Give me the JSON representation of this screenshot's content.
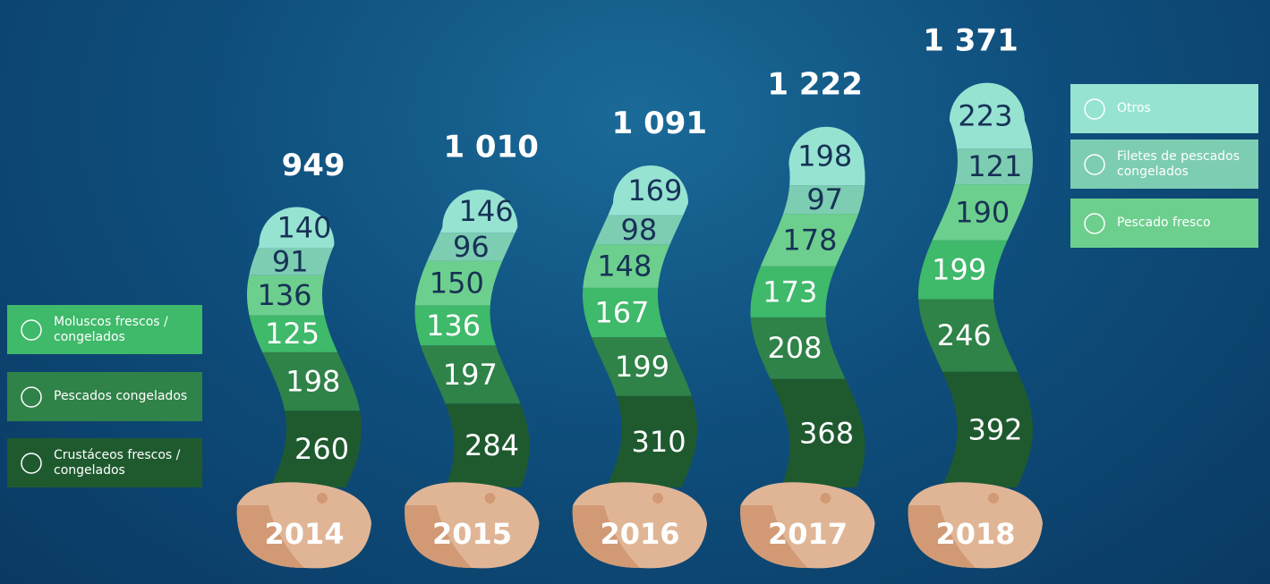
{
  "chart_data": {
    "type": "stacked-wave",
    "categories": [
      "2014",
      "2015",
      "2016",
      "2017",
      "2018"
    ],
    "series": [
      {
        "name": "Crustáceos frescos / congelados",
        "color": "#1f5a2f",
        "values": [
          260,
          284,
          310,
          368,
          392
        ]
      },
      {
        "name": "Pescados congelados",
        "color": "#2f8248",
        "values": [
          198,
          197,
          199,
          208,
          246
        ]
      },
      {
        "name": "Moluscos frescos / congelados",
        "color": "#3fb96a",
        "values": [
          125,
          136,
          167,
          173,
          199
        ]
      },
      {
        "name": "Pescado fresco",
        "color": "#6dcf8d",
        "values": [
          136,
          150,
          148,
          178,
          190
        ]
      },
      {
        "name": "Filetes de pescados congelados",
        "color": "#7dcdb2",
        "values": [
          91,
          96,
          98,
          97,
          121
        ]
      },
      {
        "name": "Otros",
        "color": "#96e3d2",
        "values": [
          140,
          146,
          169,
          198,
          223
        ]
      }
    ],
    "totals": [
      949,
      1010,
      1091,
      1222,
      1371
    ],
    "total_labels": [
      "949",
      "1 010",
      "1 091",
      "1 222",
      "1 371"
    ]
  }
}
